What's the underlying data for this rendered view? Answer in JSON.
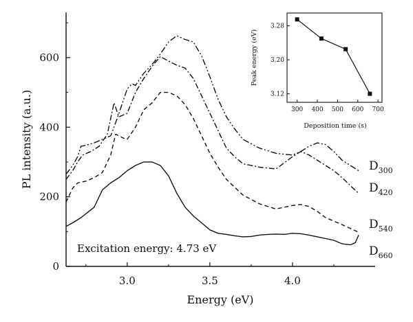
{
  "chart_data": [
    {
      "type": "line",
      "xlabel": "Energy (eV)",
      "ylabel": "PL intensity (a.u.)",
      "xlim": [
        2.63,
        4.5
      ],
      "ylim": [
        0,
        730
      ],
      "xticks": [
        3.0,
        3.5,
        4.0
      ],
      "xtick_labels": [
        "3.0",
        "3.5",
        "4.0"
      ],
      "yticks": [
        0,
        200,
        400,
        600
      ],
      "ytick_labels": [
        "0",
        "200",
        "400",
        "600"
      ],
      "grid": false,
      "annotation": "Excitation energy:  4.73 eV",
      "series": [
        {
          "name": "D300",
          "label_main": "D",
          "label_sub": "300",
          "style": "dash-dot-dot",
          "x": [
            2.63,
            2.67,
            2.7,
            2.72,
            2.75,
            2.8,
            2.85,
            2.9,
            2.92,
            2.95,
            3.0,
            3.03,
            3.05,
            3.1,
            3.15,
            3.2,
            3.25,
            3.3,
            3.35,
            3.4,
            3.45,
            3.5,
            3.55,
            3.6,
            3.65,
            3.7,
            3.8,
            3.9,
            4.0,
            4.05,
            4.1,
            4.15,
            4.2,
            4.25,
            4.3,
            4.35,
            4.4
          ],
          "y": [
            265,
            290,
            315,
            345,
            348,
            355,
            365,
            375,
            400,
            440,
            510,
            525,
            520,
            555,
            580,
            610,
            645,
            663,
            652,
            645,
            605,
            545,
            480,
            430,
            395,
            365,
            340,
            325,
            320,
            330,
            345,
            355,
            350,
            330,
            305,
            290,
            275
          ]
        },
        {
          "name": "D420",
          "label_main": "D",
          "label_sub": "420",
          "style": "dash-dot",
          "x": [
            2.63,
            2.67,
            2.7,
            2.73,
            2.78,
            2.83,
            2.88,
            2.92,
            2.95,
            3.0,
            3.05,
            3.1,
            3.15,
            3.2,
            3.25,
            3.3,
            3.35,
            3.4,
            3.45,
            3.5,
            3.55,
            3.6,
            3.65,
            3.7,
            3.8,
            3.9,
            4.0,
            4.05,
            4.1,
            4.15,
            4.2,
            4.25,
            4.3,
            4.35,
            4.4
          ],
          "y": [
            250,
            275,
            300,
            320,
            330,
            345,
            380,
            470,
            430,
            440,
            500,
            540,
            575,
            603,
            590,
            578,
            570,
            540,
            490,
            440,
            390,
            340,
            315,
            295,
            285,
            280,
            315,
            330,
            320,
            305,
            290,
            275,
            255,
            232,
            210
          ]
        },
        {
          "name": "D540",
          "label_main": "D",
          "label_sub": "540",
          "style": "dashed",
          "x": [
            2.63,
            2.67,
            2.7,
            2.75,
            2.8,
            2.85,
            2.9,
            2.93,
            2.97,
            3.0,
            3.05,
            3.1,
            3.15,
            3.2,
            3.25,
            3.3,
            3.35,
            3.4,
            3.45,
            3.5,
            3.55,
            3.6,
            3.7,
            3.8,
            3.9,
            4.0,
            4.05,
            4.1,
            4.15,
            4.2,
            4.3,
            4.4
          ],
          "y": [
            185,
            225,
            240,
            245,
            255,
            270,
            320,
            380,
            370,
            365,
            400,
            450,
            470,
            500,
            500,
            490,
            465,
            425,
            375,
            325,
            285,
            250,
            205,
            180,
            165,
            175,
            178,
            172,
            158,
            140,
            120,
            98
          ]
        },
        {
          "name": "D660",
          "label_main": "D",
          "label_sub": "660",
          "style": "solid",
          "x": [
            2.63,
            2.68,
            2.72,
            2.76,
            2.8,
            2.85,
            2.9,
            2.95,
            3.0,
            3.05,
            3.1,
            3.15,
            3.2,
            3.25,
            3.3,
            3.35,
            3.4,
            3.45,
            3.5,
            3.55,
            3.6,
            3.65,
            3.7,
            3.75,
            3.8,
            3.85,
            3.9,
            3.95,
            4.0,
            4.05,
            4.1,
            4.15,
            4.2,
            4.25,
            4.3,
            4.35,
            4.38,
            4.4
          ],
          "y": [
            115,
            128,
            140,
            155,
            170,
            220,
            240,
            255,
            275,
            290,
            300,
            300,
            290,
            260,
            210,
            170,
            145,
            125,
            105,
            95,
            92,
            88,
            85,
            86,
            90,
            92,
            93,
            92,
            95,
            94,
            90,
            85,
            80,
            75,
            65,
            62,
            68,
            90
          ]
        }
      ]
    },
    {
      "type": "line",
      "markers": "square",
      "xlabel": "Deposition time (s)",
      "ylabel": "Peak energy (eV)",
      "xlim": [
        250,
        720
      ],
      "ylim": [
        3.1,
        3.31
      ],
      "xticks": [
        300,
        400,
        500,
        600,
        700
      ],
      "xtick_labels": [
        "300",
        "400",
        "500",
        "600",
        "700"
      ],
      "yticks": [
        3.12,
        3.2,
        3.28
      ],
      "ytick_labels": [
        "3.12",
        "3.20",
        "3.28"
      ],
      "series": [
        {
          "x": [
            300,
            420,
            540,
            660
          ],
          "y": [
            3.295,
            3.25,
            3.225,
            3.12
          ]
        }
      ]
    }
  ]
}
